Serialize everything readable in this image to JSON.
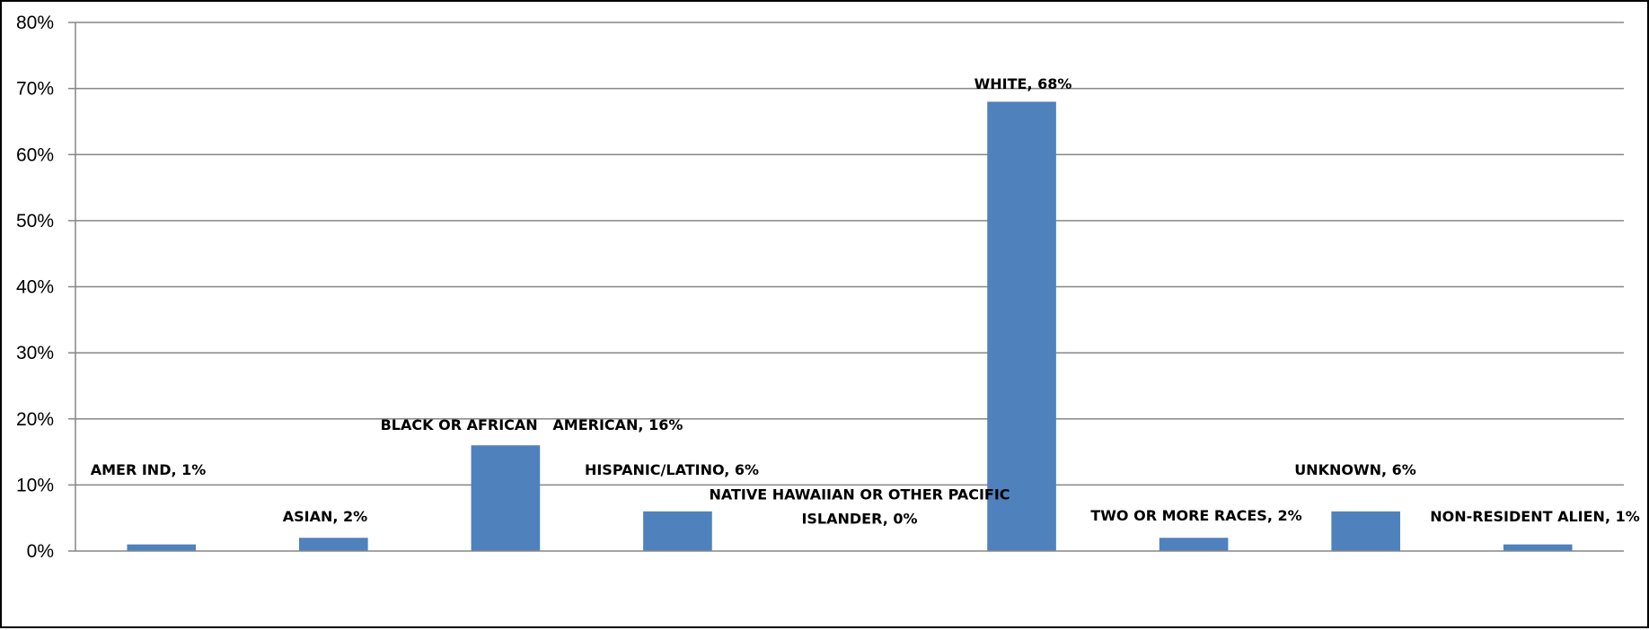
{
  "chart_data": {
    "type": "bar",
    "categories": [
      "AMER IND",
      "ASIAN",
      "BLACK OR AFRICAN   AMERICAN",
      "HISPANIC/LATINO",
      "NATIVE HAWAIIAN OR OTHER PACIFIC ISLANDER",
      "WHITE",
      "TWO OR MORE RACES",
      "UNKNOWN",
      "NON-RESIDENT ALIEN"
    ],
    "values": [
      1,
      2,
      16,
      6,
      0,
      68,
      2,
      6,
      1
    ],
    "data_labels": [
      [
        "AMER IND, 1%"
      ],
      [
        "ASIAN, 2%"
      ],
      [
        "BLACK OR AFRICAN   AMERICAN, 16%"
      ],
      [
        "HISPANIC/LATINO, 6%"
      ],
      [
        "NATIVE HAWAIIAN OR OTHER PACIFIC",
        "ISLANDER, 0%"
      ],
      [
        "WHITE, 68%"
      ],
      [
        "TWO OR MORE RACES, 2%"
      ],
      [
        "UNKNOWN, 6%"
      ],
      [
        "NON-RESIDENT ALIEN, 1%"
      ]
    ],
    "ylim": [
      0,
      80
    ],
    "yticks": [
      0,
      10,
      20,
      30,
      40,
      50,
      60,
      70,
      80
    ],
    "ytick_labels": [
      "0%",
      "10%",
      "20%",
      "30%",
      "40%",
      "50%",
      "60%",
      "70%",
      "80%"
    ],
    "grid": true,
    "legend": "none",
    "colors": {
      "bar": "#4F81BD",
      "grid": "#868686",
      "axis": "#868686",
      "text": "#000000",
      "border": "#000000"
    }
  }
}
